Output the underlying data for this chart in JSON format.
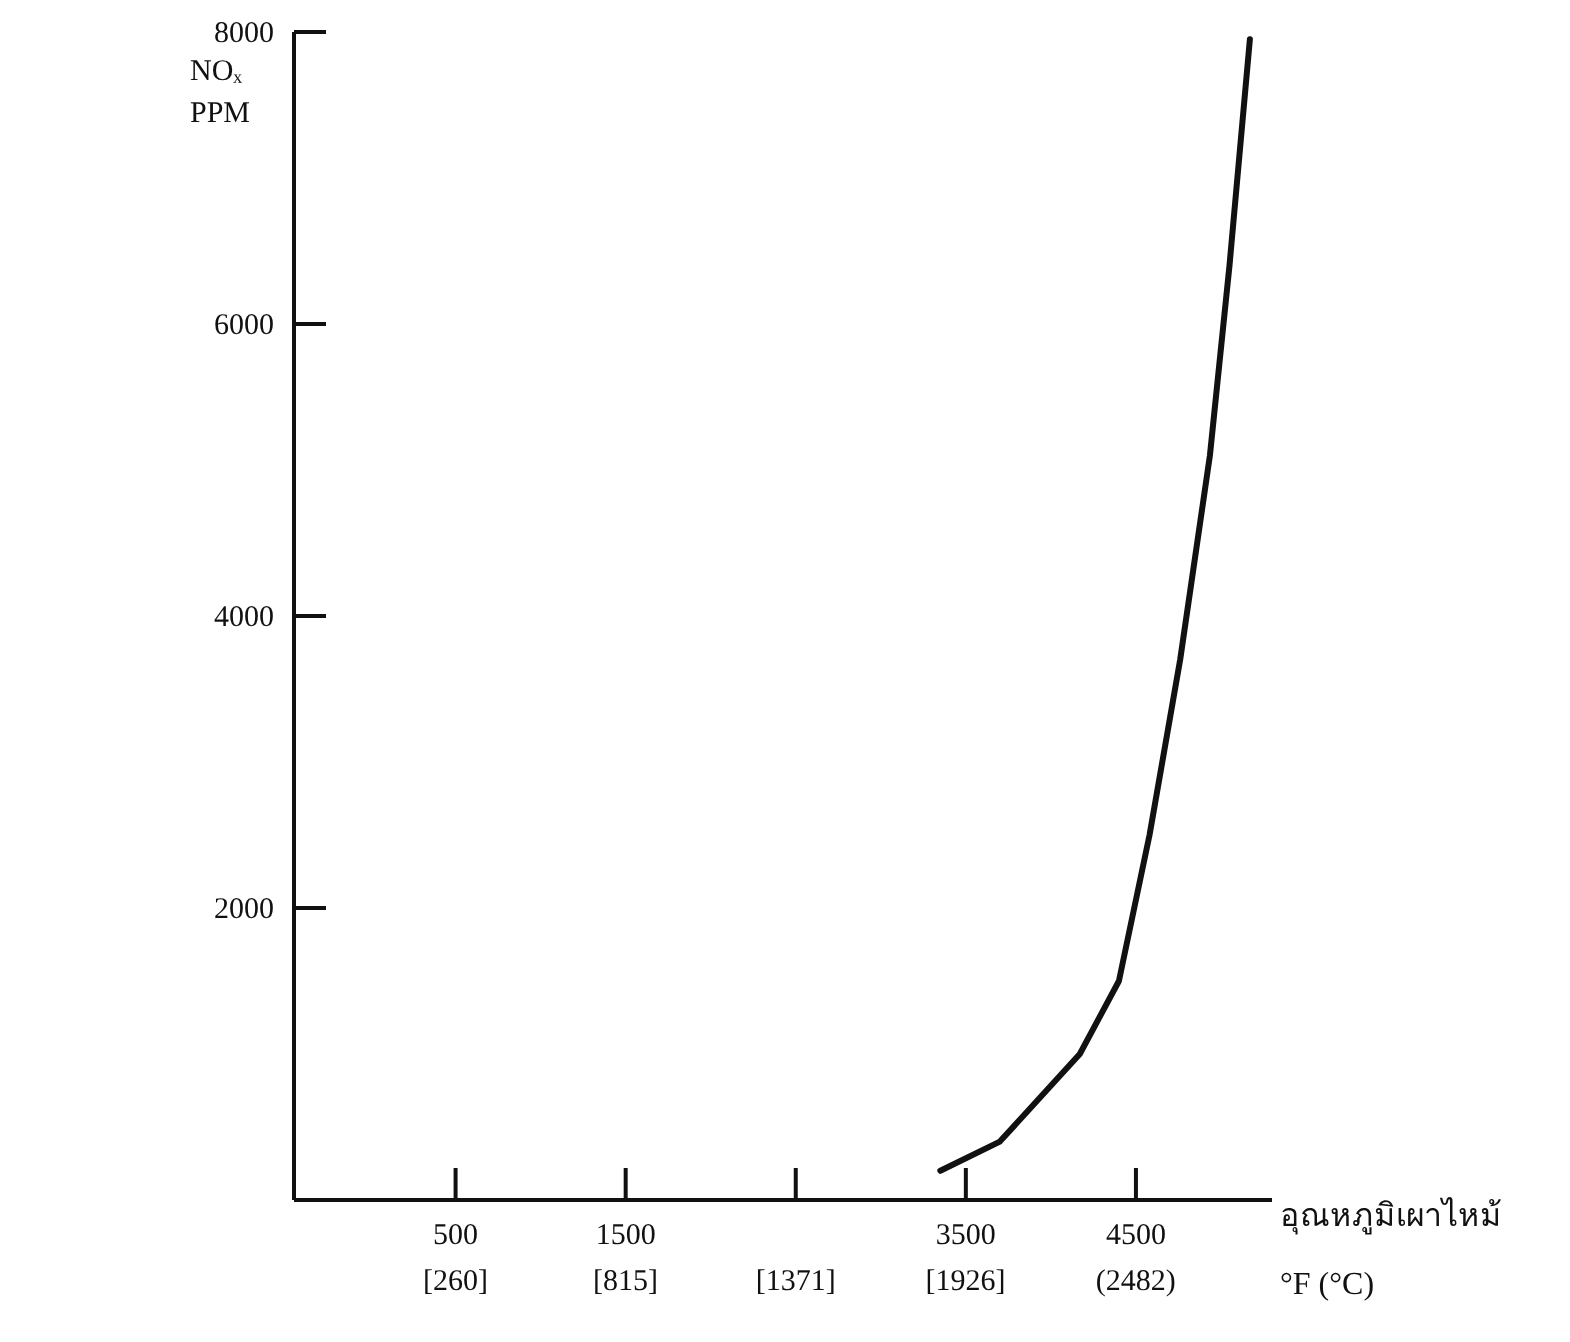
{
  "chart_data": {
    "type": "line",
    "ylabel": "NOₓ\nPPM",
    "xlabel": "อุณหภูมิเผาไหม้\n°F (°C)",
    "xlim": [
      -450,
      5300
    ],
    "ylim": [
      0,
      8000
    ],
    "xticks": [
      500,
      1500,
      {
        "value": 2500,
        "label": null
      },
      3500,
      4500
    ],
    "x2lim": [
      -268,
      2927
    ],
    "x2ticks": [
      {
        "value": 260,
        "label": "[260]"
      },
      {
        "value": 815,
        "label": "[815]"
      },
      {
        "value": 1371,
        "label": "[1371]"
      },
      {
        "value": 1926,
        "label": "[1926]"
      },
      {
        "value": 2482,
        "label": "(2482)"
      }
    ],
    "yticks": [
      2000,
      4000,
      6000,
      8000
    ],
    "series": [
      {
        "color": "#111111",
        "x": [
          3350,
          3700,
          4170,
          4400,
          4580,
          4760,
          4935,
          5050,
          5170
        ],
        "values": [
          200,
          400,
          1000,
          1500,
          2500,
          3700,
          5100,
          6400,
          7950
        ]
      }
    ],
    "grid": false,
    "marker": "none",
    "line_style": "solid"
  }
}
